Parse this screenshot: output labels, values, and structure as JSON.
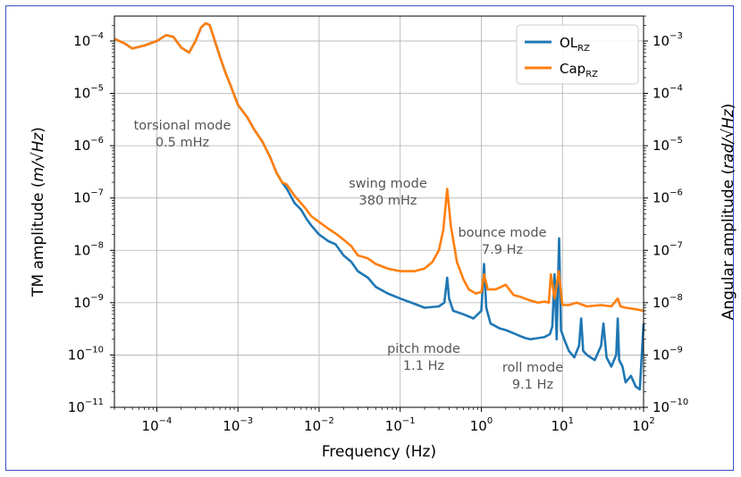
{
  "chart_data": {
    "type": "line",
    "xlabel": "Frequency (Hz)",
    "ylabel": "TM amplitude",
    "ylabel_unit": "m/√Hz",
    "y2label": "Angular amplitude",
    "y2label_unit": "rad/√Hz",
    "xscale": "log",
    "yscale": "log",
    "xlim": [
      3e-05,
      100
    ],
    "ylim": [
      1e-11,
      0.0003
    ],
    "y2lim": [
      1e-10,
      0.003
    ],
    "grid": true,
    "legend_position": "top-right",
    "x_ticks": [
      {
        "base": "10",
        "exp": "−4",
        "v": -4
      },
      {
        "base": "10",
        "exp": "−3",
        "v": -3
      },
      {
        "base": "10",
        "exp": "−2",
        "v": -2
      },
      {
        "base": "10",
        "exp": "−1",
        "v": -1
      },
      {
        "base": "10",
        "exp": "0",
        "v": 0
      },
      {
        "base": "10",
        "exp": "1",
        "v": 1
      },
      {
        "base": "10",
        "exp": "2",
        "v": 2
      }
    ],
    "y_ticks": [
      {
        "base": "10",
        "exp": "−4",
        "v": -4
      },
      {
        "base": "10",
        "exp": "−5",
        "v": -5
      },
      {
        "base": "10",
        "exp": "−6",
        "v": -6
      },
      {
        "base": "10",
        "exp": "−7",
        "v": -7
      },
      {
        "base": "10",
        "exp": "−8",
        "v": -8
      },
      {
        "base": "10",
        "exp": "−9",
        "v": -9
      },
      {
        "base": "10",
        "exp": "−10",
        "v": -10
      },
      {
        "base": "10",
        "exp": "−11",
        "v": -11
      }
    ],
    "y2_ticks": [
      {
        "base": "10",
        "exp": "−3",
        "v": -3
      },
      {
        "base": "10",
        "exp": "−4",
        "v": -4
      },
      {
        "base": "10",
        "exp": "−5",
        "v": -5
      },
      {
        "base": "10",
        "exp": "−6",
        "v": -6
      },
      {
        "base": "10",
        "exp": "−7",
        "v": -7
      },
      {
        "base": "10",
        "exp": "−8",
        "v": -8
      },
      {
        "base": "10",
        "exp": "−9",
        "v": -9
      },
      {
        "base": "10",
        "exp": "−10",
        "v": -10
      }
    ],
    "series": [
      {
        "name": "OL",
        "name_sub": "RZ",
        "color": "#1f77b4",
        "x": [
          3e-05,
          4e-05,
          5e-05,
          7e-05,
          0.0001,
          0.00013,
          0.00016,
          0.0002,
          0.00025,
          0.0003,
          0.00035,
          0.0004,
          0.00045,
          0.0005,
          0.0006,
          0.0007,
          0.0008,
          0.001,
          0.0013,
          0.0016,
          0.002,
          0.0025,
          0.003,
          0.0035,
          0.004,
          0.005,
          0.006,
          0.007,
          0.008,
          0.01,
          0.013,
          0.016,
          0.02,
          0.025,
          0.03,
          0.04,
          0.05,
          0.07,
          0.1,
          0.15,
          0.2,
          0.3,
          0.35,
          0.38,
          0.4,
          0.45,
          0.6,
          0.8,
          1.0,
          1.08,
          1.15,
          1.3,
          1.7,
          2,
          2.5,
          3,
          3.5,
          4,
          5,
          6,
          7,
          7.5,
          8,
          8.5,
          9.1,
          9.6,
          10.5,
          12,
          14,
          16,
          17,
          18,
          20,
          25,
          30,
          32,
          35,
          40,
          46,
          48,
          50,
          55,
          60,
          70,
          80,
          90,
          100
        ],
        "y": [
          0.00011,
          9e-05,
          7.2e-05,
          8.2e-05,
          0.0001,
          0.00013,
          0.00012,
          7.5e-05,
          6e-05,
          0.0001,
          0.00018,
          0.00022,
          0.0002,
          0.00012,
          5e-05,
          2.5e-05,
          1.5e-05,
          6e-06,
          3.5e-06,
          2e-06,
          1.2e-06,
          6e-07,
          3e-07,
          2e-07,
          1.5e-07,
          8e-08,
          6e-08,
          4e-08,
          3e-08,
          2e-08,
          1.5e-08,
          1.3e-08,
          8e-09,
          6e-09,
          4e-09,
          3e-09,
          2e-09,
          1.5e-09,
          1.2e-09,
          9.5e-10,
          8e-10,
          8.5e-10,
          1e-09,
          3e-09,
          1.2e-09,
          7e-10,
          6e-10,
          5e-10,
          7e-10,
          5.5e-09,
          8e-10,
          4e-10,
          3.2e-10,
          3e-10,
          2.6e-10,
          2.3e-10,
          2.1e-10,
          2e-10,
          2.1e-10,
          2.2e-10,
          2.5e-10,
          3.5e-10,
          3.5e-09,
          2e-10,
          1.7e-08,
          3e-10,
          2e-10,
          1.2e-10,
          9e-11,
          1.5e-10,
          5e-10,
          1.2e-10,
          1e-10,
          8e-11,
          1.5e-10,
          4e-10,
          9e-11,
          6e-11,
          1e-10,
          5e-10,
          8e-11,
          6e-11,
          3e-11,
          4e-11,
          2.5e-11,
          2.2e-11,
          4e-10
        ]
      },
      {
        "name": "Cap",
        "name_sub": "RZ",
        "color": "#ff7f0e",
        "x": [
          3e-05,
          4e-05,
          5e-05,
          7e-05,
          0.0001,
          0.00013,
          0.00016,
          0.0002,
          0.00025,
          0.0003,
          0.00035,
          0.0004,
          0.00045,
          0.0005,
          0.0006,
          0.0007,
          0.0008,
          0.001,
          0.0013,
          0.0016,
          0.002,
          0.0025,
          0.003,
          0.0035,
          0.004,
          0.005,
          0.006,
          0.007,
          0.008,
          0.01,
          0.013,
          0.016,
          0.02,
          0.025,
          0.03,
          0.04,
          0.05,
          0.07,
          0.1,
          0.15,
          0.2,
          0.25,
          0.3,
          0.34,
          0.38,
          0.42,
          0.5,
          0.6,
          0.7,
          0.85,
          1.0,
          1.08,
          1.2,
          1.5,
          2,
          2.5,
          3,
          4,
          5,
          6,
          6.8,
          7.2,
          8,
          9,
          10,
          12,
          15,
          20,
          30,
          40,
          48,
          52,
          60,
          80,
          100
        ],
        "y": [
          0.00011,
          9e-05,
          7.2e-05,
          8.2e-05,
          0.0001,
          0.00013,
          0.00012,
          7.5e-05,
          6e-05,
          0.0001,
          0.00018,
          0.00022,
          0.0002,
          0.00012,
          5e-05,
          2.5e-05,
          1.5e-05,
          6e-06,
          3.5e-06,
          2e-06,
          1.2e-06,
          6e-07,
          3e-07,
          2e-07,
          1.8e-07,
          1.1e-07,
          8e-08,
          6e-08,
          4.5e-08,
          3.5e-08,
          2.6e-08,
          2.1e-08,
          1.6e-08,
          1.2e-08,
          8e-09,
          7e-09,
          5.5e-09,
          4.5e-09,
          4e-09,
          4e-09,
          4.5e-09,
          6e-09,
          1e-08,
          2.5e-08,
          1.5e-07,
          3e-08,
          6e-09,
          2.8e-09,
          1.8e-09,
          1.5e-09,
          1.6e-09,
          3.5e-09,
          1.8e-09,
          1.8e-09,
          2.2e-09,
          1.4e-09,
          1.3e-09,
          1.1e-09,
          1e-09,
          1.05e-09,
          1e-09,
          3.5e-09,
          1.2e-09,
          4e-09,
          9e-10,
          9e-10,
          1e-09,
          8.5e-10,
          9e-10,
          8.5e-10,
          1.2e-09,
          8.5e-10,
          8e-10,
          7.5e-10,
          7e-10
        ]
      }
    ],
    "annotations": [
      {
        "id": "torsional",
        "lines": [
          "torsional mode",
          "0.5 mHz"
        ]
      },
      {
        "id": "swing",
        "lines": [
          "swing mode",
          "380 mHz"
        ]
      },
      {
        "id": "bounce",
        "lines": [
          "bounce mode",
          "7.9 Hz"
        ]
      },
      {
        "id": "pitch",
        "lines": [
          "pitch mode",
          "1.1 Hz"
        ]
      },
      {
        "id": "roll",
        "lines": [
          "roll mode",
          "9.1 Hz"
        ]
      }
    ]
  }
}
